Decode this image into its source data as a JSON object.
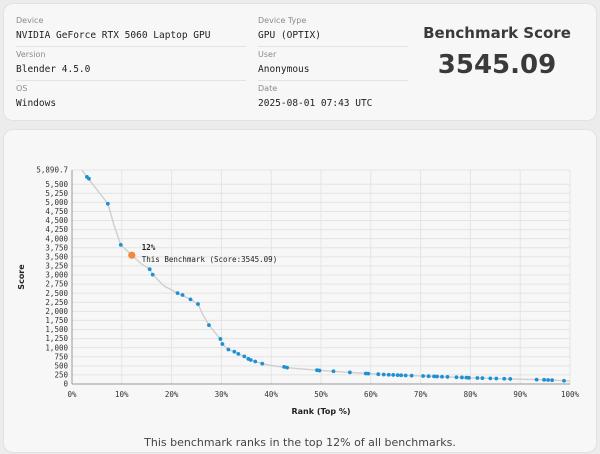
{
  "info": {
    "device": {
      "label": "Device",
      "value": "NVIDIA GeForce RTX 5060 Laptop GPU"
    },
    "version": {
      "label": "Version",
      "value": "Blender 4.5.0"
    },
    "os": {
      "label": "OS",
      "value": "Windows"
    },
    "device_type": {
      "label": "Device Type",
      "value": "GPU (OPTIX)"
    },
    "user": {
      "label": "User",
      "value": "Anonymous"
    },
    "date": {
      "label": "Date",
      "value": "2025-08-01 07:43 UTC"
    }
  },
  "score": {
    "title": "Benchmark Score",
    "value": "3545.09"
  },
  "footer": "This benchmark ranks in the top 12% of all benchmarks.",
  "colors": {
    "point": "#1e90d6",
    "highlight": "#f08a3c",
    "curve": "#cfcfcf"
  },
  "chart_data": {
    "type": "scatter",
    "xlabel": "Rank (Top %)",
    "ylabel": "Score",
    "xlim": [
      0,
      100
    ],
    "ylim": [
      0,
      5890.7
    ],
    "x_ticks": [
      "0%",
      "10%",
      "20%",
      "30%",
      "40%",
      "50%",
      "60%",
      "70%",
      "80%",
      "90%",
      "100%"
    ],
    "y_ticks": [
      {
        "value": 0,
        "label": "0"
      },
      {
        "value": 250,
        "label": "250"
      },
      {
        "value": 500,
        "label": "500"
      },
      {
        "value": 750,
        "label": "750"
      },
      {
        "value": 1000,
        "label": "1,000"
      },
      {
        "value": 1250,
        "label": "1,250"
      },
      {
        "value": 1500,
        "label": "1,500"
      },
      {
        "value": 1750,
        "label": "1,750"
      },
      {
        "value": 2000,
        "label": "2,000"
      },
      {
        "value": 2250,
        "label": "2,250"
      },
      {
        "value": 2500,
        "label": "2,500"
      },
      {
        "value": 2750,
        "label": "2,750"
      },
      {
        "value": 3000,
        "label": "3,000"
      },
      {
        "value": 3250,
        "label": "3,250"
      },
      {
        "value": 3500,
        "label": "3,500"
      },
      {
        "value": 3750,
        "label": "3,750"
      },
      {
        "value": 4000,
        "label": "4,000"
      },
      {
        "value": 4250,
        "label": "4,250"
      },
      {
        "value": 4500,
        "label": "4,500"
      },
      {
        "value": 4750,
        "label": "4,750"
      },
      {
        "value": 5000,
        "label": "5,000"
      },
      {
        "value": 5250,
        "label": "5,250"
      },
      {
        "value": 5500,
        "label": "5,500"
      },
      {
        "value": 5890.7,
        "label": "5,890.7"
      }
    ],
    "points": [
      {
        "x": 3.0,
        "y": 5700
      },
      {
        "x": 3.4,
        "y": 5650
      },
      {
        "x": 7.2,
        "y": 4960
      },
      {
        "x": 9.8,
        "y": 3830
      },
      {
        "x": 15.6,
        "y": 3160
      },
      {
        "x": 16.2,
        "y": 3010
      },
      {
        "x": 21.2,
        "y": 2500
      },
      {
        "x": 22.2,
        "y": 2450
      },
      {
        "x": 23.8,
        "y": 2330
      },
      {
        "x": 25.3,
        "y": 2200
      },
      {
        "x": 27.5,
        "y": 1620
      },
      {
        "x": 29.8,
        "y": 1240
      },
      {
        "x": 30.2,
        "y": 1100
      },
      {
        "x": 31.4,
        "y": 950
      },
      {
        "x": 32.6,
        "y": 890
      },
      {
        "x": 33.4,
        "y": 830
      },
      {
        "x": 34.6,
        "y": 760
      },
      {
        "x": 35.4,
        "y": 690
      },
      {
        "x": 35.9,
        "y": 660
      },
      {
        "x": 36.8,
        "y": 620
      },
      {
        "x": 38.2,
        "y": 560
      },
      {
        "x": 42.6,
        "y": 470
      },
      {
        "x": 43.2,
        "y": 450
      },
      {
        "x": 49.2,
        "y": 380
      },
      {
        "x": 49.7,
        "y": 370
      },
      {
        "x": 52.5,
        "y": 350
      },
      {
        "x": 55.8,
        "y": 320
      },
      {
        "x": 59.0,
        "y": 290
      },
      {
        "x": 59.5,
        "y": 285
      },
      {
        "x": 61.5,
        "y": 270
      },
      {
        "x": 62.6,
        "y": 260
      },
      {
        "x": 63.6,
        "y": 255
      },
      {
        "x": 64.5,
        "y": 250
      },
      {
        "x": 65.4,
        "y": 245
      },
      {
        "x": 66.1,
        "y": 240
      },
      {
        "x": 67.0,
        "y": 235
      },
      {
        "x": 68.2,
        "y": 230
      },
      {
        "x": 70.5,
        "y": 220
      },
      {
        "x": 71.6,
        "y": 215
      },
      {
        "x": 72.7,
        "y": 210
      },
      {
        "x": 73.3,
        "y": 205
      },
      {
        "x": 74.3,
        "y": 200
      },
      {
        "x": 75.4,
        "y": 195
      },
      {
        "x": 77.2,
        "y": 185
      },
      {
        "x": 78.3,
        "y": 180
      },
      {
        "x": 79.2,
        "y": 175
      },
      {
        "x": 79.7,
        "y": 170
      },
      {
        "x": 81.4,
        "y": 165
      },
      {
        "x": 82.4,
        "y": 160
      },
      {
        "x": 84.0,
        "y": 155
      },
      {
        "x": 85.2,
        "y": 150
      },
      {
        "x": 86.8,
        "y": 145
      },
      {
        "x": 88.0,
        "y": 140
      },
      {
        "x": 93.3,
        "y": 120
      },
      {
        "x": 94.8,
        "y": 115
      },
      {
        "x": 95.6,
        "y": 110
      },
      {
        "x": 96.4,
        "y": 105
      },
      {
        "x": 98.8,
        "y": 90
      }
    ],
    "curve": [
      [
        2.0,
        5890.7
      ],
      [
        3.0,
        5700
      ],
      [
        5.0,
        5350
      ],
      [
        7.2,
        4960
      ],
      [
        8.5,
        4350
      ],
      [
        9.8,
        3830
      ],
      [
        12.0,
        3545.09
      ],
      [
        14.0,
        3300
      ],
      [
        15.6,
        3160
      ],
      [
        16.2,
        3010
      ],
      [
        18.5,
        2700
      ],
      [
        21.2,
        2500
      ],
      [
        23.8,
        2330
      ],
      [
        25.3,
        2200
      ],
      [
        26.3,
        1900
      ],
      [
        27.5,
        1620
      ],
      [
        28.7,
        1420
      ],
      [
        29.8,
        1240
      ],
      [
        30.2,
        1100
      ],
      [
        31.4,
        950
      ],
      [
        33.4,
        830
      ],
      [
        35.4,
        690
      ],
      [
        36.8,
        620
      ],
      [
        38.2,
        560
      ],
      [
        40.0,
        510
      ],
      [
        43.2,
        450
      ],
      [
        49.2,
        380
      ],
      [
        52.5,
        350
      ],
      [
        55.8,
        320
      ],
      [
        59.0,
        290
      ],
      [
        64.5,
        250
      ],
      [
        70.5,
        220
      ],
      [
        75.4,
        195
      ],
      [
        79.7,
        170
      ],
      [
        85.2,
        150
      ],
      [
        90.0,
        132
      ],
      [
        93.3,
        120
      ],
      [
        96.4,
        105
      ],
      [
        98.8,
        90
      ],
      [
        100,
        80
      ]
    ],
    "highlight": {
      "x": 12,
      "y": 3545.09,
      "pct_label": "12%",
      "label": "This Benchmark (Score:3545.09)"
    }
  }
}
